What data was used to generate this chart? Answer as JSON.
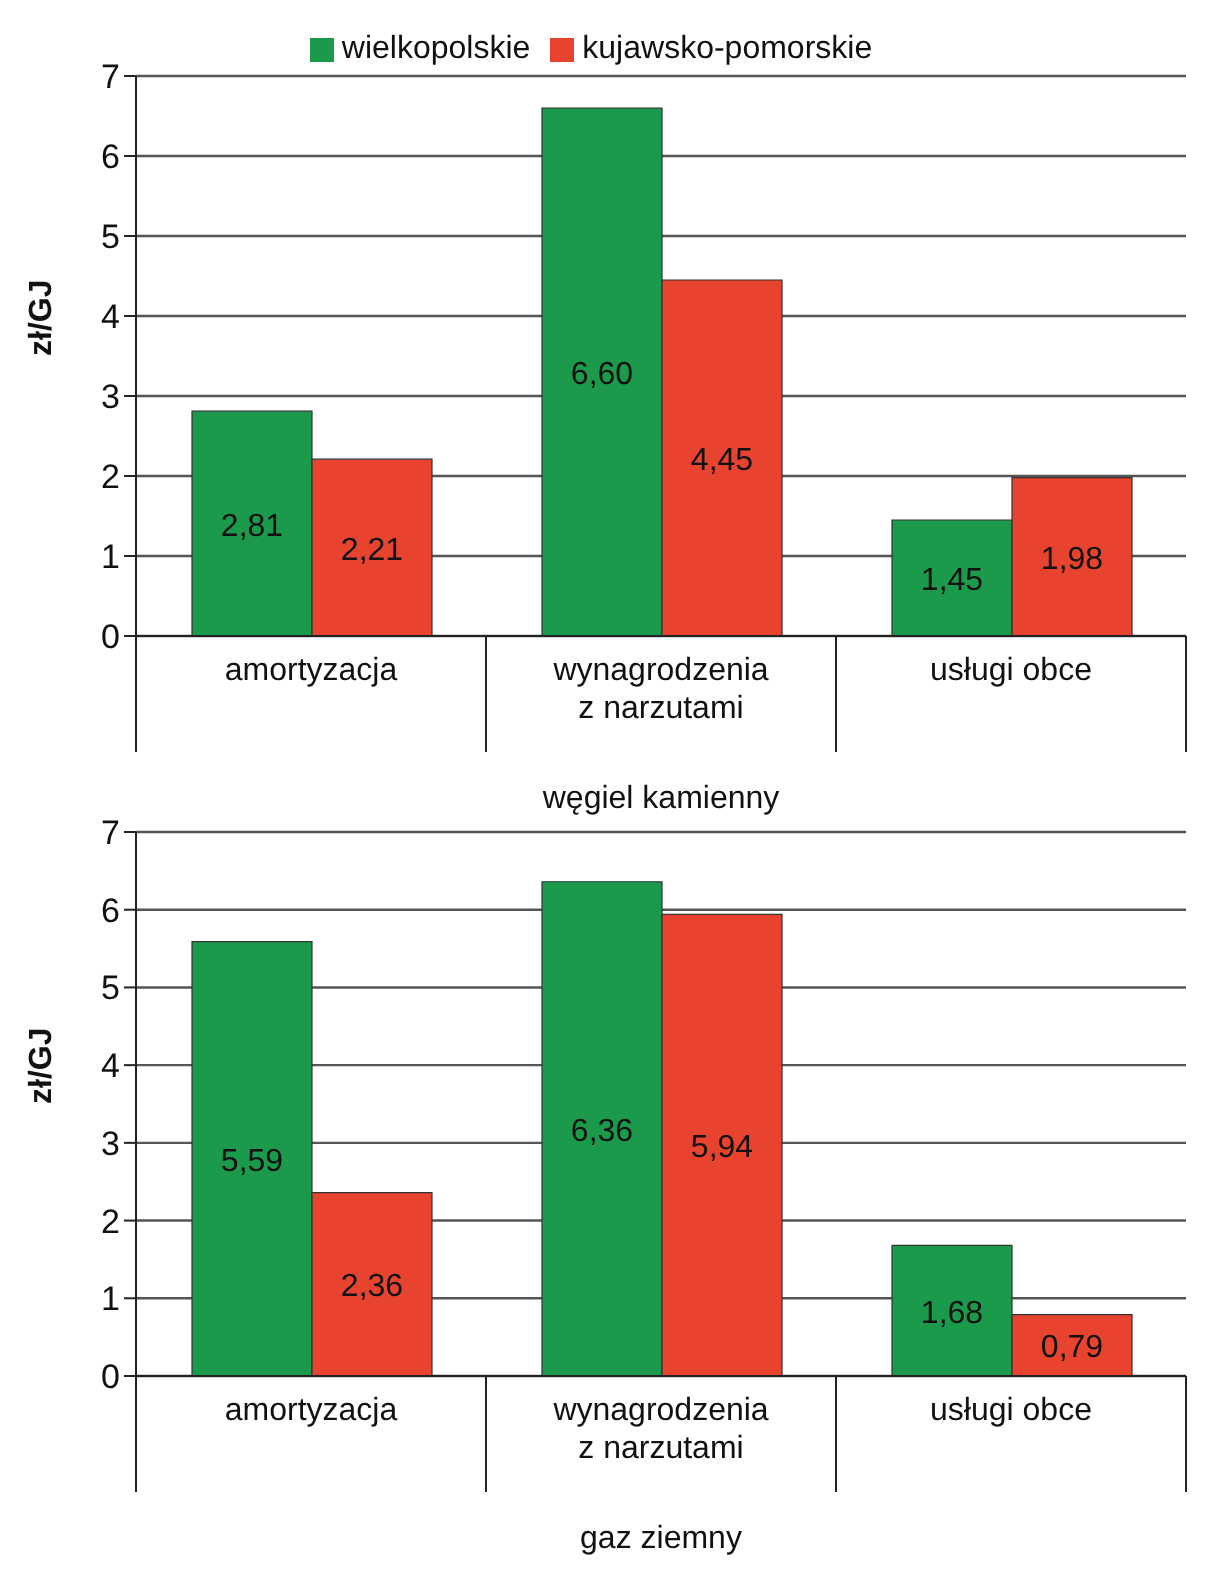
{
  "chart_data": [
    {
      "type": "bar",
      "xlabel": "węgiel kamienny",
      "ylabel": "zł/GJ",
      "categories": [
        "amortyzacja",
        "wynagrodzenia z narzutami",
        "usługi obce"
      ],
      "series": [
        {
          "name": "wielkopolskie",
          "color": "#1a9a4a",
          "values": [
            2.81,
            6.6,
            1.45
          ],
          "value_labels": [
            "2,81",
            "6,60",
            "1,45"
          ]
        },
        {
          "name": "kujawsko-pomorskie",
          "color": "#e8432e",
          "values": [
            2.21,
            4.45,
            1.98
          ],
          "value_labels": [
            "2,21",
            "4,45",
            "1,98"
          ]
        }
      ],
      "ylim": [
        0,
        7
      ],
      "yticks": [
        0,
        1,
        2,
        3,
        4,
        5,
        6,
        7
      ],
      "grid": "y",
      "legend": "top"
    },
    {
      "type": "bar",
      "xlabel": "gaz ziemny",
      "ylabel": "zł/GJ",
      "categories": [
        "amortyzacja",
        "wynagrodzenia z narzutami",
        "usługi obce"
      ],
      "series": [
        {
          "color": "#1a9a4a",
          "values": [
            5.59,
            6.36,
            1.68
          ],
          "value_labels": [
            "5,59",
            "6,36",
            "1,68"
          ]
        },
        {
          "color": "#e8432e",
          "values": [
            2.36,
            5.94,
            0.79
          ],
          "value_labels": [
            "2,36",
            "5,94",
            "0,79"
          ]
        }
      ],
      "ylim": [
        0,
        7
      ],
      "yticks": [
        0,
        1,
        2,
        3,
        4,
        5,
        6,
        7
      ],
      "grid": "y"
    }
  ]
}
